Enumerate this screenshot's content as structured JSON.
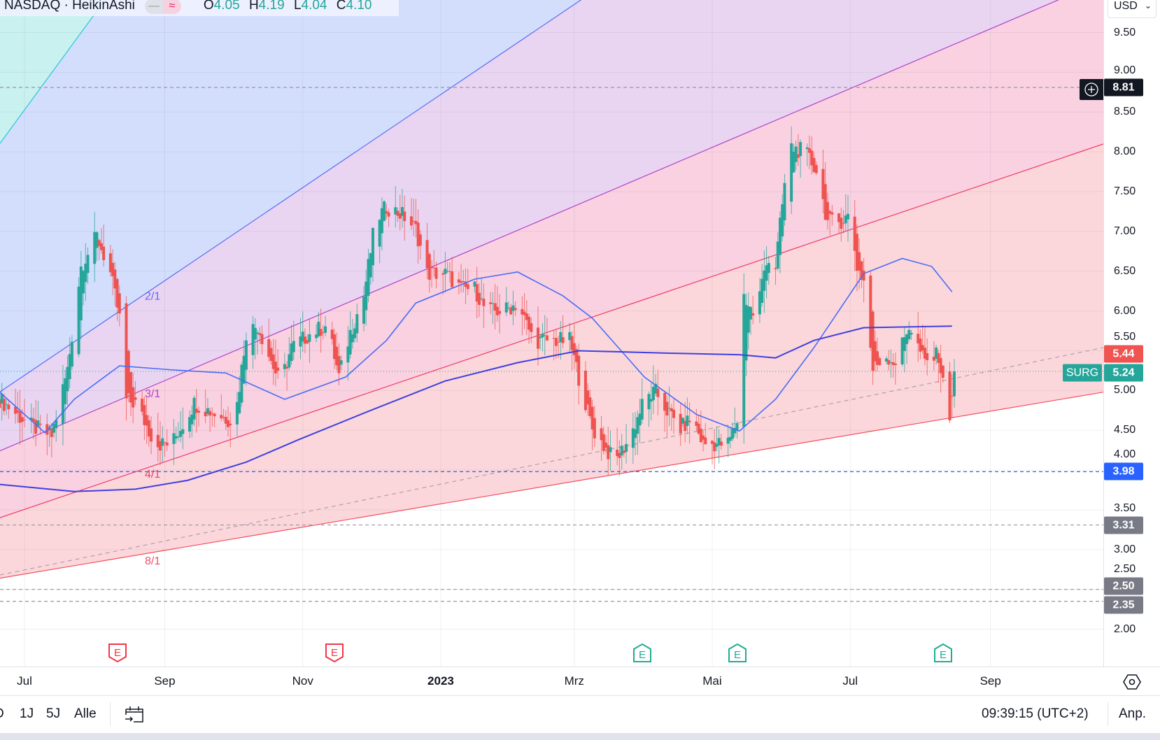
{
  "legend": {
    "symbol": "NASDAQ · HeikinAshi",
    "badge_left": "—",
    "badge_right": "≈",
    "open_label": "O",
    "open": "4.05",
    "high_label": "H",
    "high": "4.19",
    "low_label": "L",
    "low": "4.04",
    "close_label": "C",
    "close": "4.10"
  },
  "currency": {
    "label": "USD",
    "icon": "chevron-down-icon"
  },
  "colors": {
    "up": "#26a69a",
    "down": "#ef5350",
    "ma_fast": "#4a6cf7",
    "ma_slow": "#3f3fe0",
    "blue_line": "#2962ff",
    "grey_label": "#787b86",
    "dark_label": "#131722"
  },
  "bottom_bar": {
    "ranges": [
      "D",
      "1J",
      "5J",
      "Alle"
    ],
    "calendar_icon": "goto-date-icon",
    "clock": "09:39:15 (UTC+2)",
    "adjust": "Anp."
  },
  "chart_data": {
    "type": "candlestick",
    "style": "HeikinAshi",
    "y_ticks": [
      "9.50",
      "9.00",
      "8.50",
      "8.00",
      "7.50",
      "7.00",
      "6.50",
      "6.00",
      "5.50",
      "5.00",
      "4.50",
      "4.00",
      "3.50",
      "3.00",
      "2.50",
      "2.00"
    ],
    "ylim": [
      1.75,
      9.9
    ],
    "x_ticks": [
      {
        "label": "Jul",
        "date": "2022-07-01"
      },
      {
        "label": "Sep",
        "date": "2022-09-01"
      },
      {
        "label": "Nov",
        "date": "2022-11-01"
      },
      {
        "label": "2023",
        "date": "2023-01-01"
      },
      {
        "label": "Mrz",
        "date": "2023-03-01"
      },
      {
        "label": "Mai",
        "date": "2023-05-01"
      },
      {
        "label": "Jul",
        "date": "2023-07-01"
      },
      {
        "label": "Sep",
        "date": "2023-09-01"
      }
    ],
    "grid": true,
    "price_path": [
      [
        "2022-06-20",
        4.89
      ],
      [
        "2022-07-03",
        4.57
      ],
      [
        "2022-07-13",
        4.43
      ],
      [
        "2022-07-20",
        5.26
      ],
      [
        "2022-07-26",
        6.56
      ],
      [
        "2022-08-02",
        6.94
      ],
      [
        "2022-08-08",
        6.47
      ],
      [
        "2022-08-12",
        5.91
      ],
      [
        "2022-08-14",
        4.89
      ],
      [
        "2022-08-19",
        4.84
      ],
      [
        "2022-08-28",
        4.33
      ],
      [
        "2022-09-04",
        4.33
      ],
      [
        "2022-09-14",
        4.84
      ],
      [
        "2022-09-24",
        4.7
      ],
      [
        "2022-10-02",
        4.61
      ],
      [
        "2022-10-07",
        5.73
      ],
      [
        "2022-10-12",
        5.82
      ],
      [
        "2022-10-17",
        5.45
      ],
      [
        "2022-10-22",
        5.08
      ],
      [
        "2022-10-27",
        5.54
      ],
      [
        "2022-11-05",
        5.73
      ],
      [
        "2022-11-12",
        5.82
      ],
      [
        "2022-11-17",
        5.17
      ],
      [
        "2022-11-22",
        5.73
      ],
      [
        "2022-11-28",
        6.19
      ],
      [
        "2022-12-03",
        7.12
      ],
      [
        "2022-12-08",
        7.31
      ],
      [
        "2022-12-15",
        7.21
      ],
      [
        "2022-12-21",
        7.03
      ],
      [
        "2022-12-26",
        6.47
      ],
      [
        "2023-01-03",
        6.47
      ],
      [
        "2023-01-10",
        6.28
      ],
      [
        "2023-01-16",
        6.28
      ],
      [
        "2023-01-21",
        6.0
      ],
      [
        "2023-01-29",
        6.0
      ],
      [
        "2023-02-04",
        6.1
      ],
      [
        "2023-02-11",
        5.63
      ],
      [
        "2023-02-20",
        5.63
      ],
      [
        "2023-02-27",
        5.63
      ],
      [
        "2023-03-03",
        5.17
      ],
      [
        "2023-03-09",
        4.52
      ],
      [
        "2023-03-19",
        4.1
      ],
      [
        "2023-03-26",
        4.43
      ],
      [
        "2023-04-01",
        4.89
      ],
      [
        "2023-04-06",
        4.98
      ],
      [
        "2023-04-11",
        4.75
      ],
      [
        "2023-04-17",
        4.52
      ],
      [
        "2023-04-22",
        4.66
      ],
      [
        "2023-04-27",
        4.33
      ],
      [
        "2023-05-08",
        4.33
      ],
      [
        "2023-05-13",
        4.7
      ],
      [
        "2023-05-15",
        6.19
      ],
      [
        "2023-05-20",
        5.91
      ],
      [
        "2023-05-25",
        6.66
      ],
      [
        "2023-05-29",
        6.56
      ],
      [
        "2023-06-02",
        7.59
      ],
      [
        "2023-06-05",
        8.05
      ],
      [
        "2023-06-11",
        8.0
      ],
      [
        "2023-06-16",
        7.77
      ],
      [
        "2023-06-21",
        7.12
      ],
      [
        "2023-06-26",
        7.12
      ],
      [
        "2023-07-01",
        7.21
      ],
      [
        "2023-07-04",
        6.56
      ],
      [
        "2023-07-07",
        6.38
      ],
      [
        "2023-07-11",
        5.26
      ],
      [
        "2023-07-16",
        5.45
      ],
      [
        "2023-07-21",
        5.35
      ],
      [
        "2023-07-27",
        5.82
      ],
      [
        "2023-08-03",
        5.35
      ],
      [
        "2023-08-09",
        5.45
      ],
      [
        "2023-08-12",
        4.89
      ],
      [
        "2023-08-14",
        4.7
      ],
      [
        "2023-08-16",
        5.24
      ]
    ],
    "moving_averages": [
      {
        "points": [
          [
            "2022-06-20",
            4.98
          ],
          [
            "2022-07-10",
            4.47
          ],
          [
            "2022-07-23",
            4.89
          ],
          [
            "2022-08-12",
            5.31
          ],
          [
            "2022-09-04",
            5.26
          ],
          [
            "2022-09-28",
            5.22
          ],
          [
            "2022-10-24",
            4.89
          ],
          [
            "2022-11-20",
            5.17
          ],
          [
            "2022-12-08",
            5.63
          ],
          [
            "2022-12-21",
            6.1
          ],
          [
            "2023-01-16",
            6.4
          ],
          [
            "2023-02-04",
            6.49
          ],
          [
            "2023-02-24",
            6.19
          ],
          [
            "2023-03-09",
            5.91
          ],
          [
            "2023-04-01",
            5.17
          ],
          [
            "2023-04-24",
            4.7
          ],
          [
            "2023-05-13",
            4.49
          ],
          [
            "2023-05-29",
            4.89
          ],
          [
            "2023-06-15",
            5.54
          ],
          [
            "2023-07-07",
            6.47
          ],
          [
            "2023-07-24",
            6.66
          ],
          [
            "2023-08-06",
            6.56
          ],
          [
            "2023-08-15",
            6.24
          ]
        ]
      },
      {
        "points": [
          [
            "2022-06-20",
            3.82
          ],
          [
            "2022-07-23",
            3.73
          ],
          [
            "2022-08-19",
            3.76
          ],
          [
            "2022-09-11",
            3.87
          ],
          [
            "2022-10-07",
            4.1
          ],
          [
            "2022-10-30",
            4.38
          ],
          [
            "2022-12-01",
            4.75
          ],
          [
            "2023-01-03",
            5.12
          ],
          [
            "2023-02-04",
            5.35
          ],
          [
            "2023-03-03",
            5.5
          ],
          [
            "2023-04-11",
            5.47
          ],
          [
            "2023-05-13",
            5.45
          ],
          [
            "2023-05-29",
            5.41
          ],
          [
            "2023-06-15",
            5.63
          ],
          [
            "2023-07-07",
            5.79
          ],
          [
            "2023-08-15",
            5.81
          ]
        ]
      }
    ],
    "gann_fan": {
      "labels": [
        "2/1",
        "3/1",
        "4/1",
        "8/1"
      ],
      "lines": [
        {
          "from": [
            "2022-06-20",
            8.1
          ],
          "to": [
            "2022-08-02",
            9.77
          ],
          "color": "#26c6da",
          "fill": "#c9f1ef"
        },
        {
          "from": [
            "2022-06-20",
            4.98
          ],
          "to": [
            "2023-03-04",
            9.91
          ],
          "color": "#5b6cf0",
          "fill": "#d3defd",
          "label": "2/1"
        },
        {
          "from": [
            "2022-06-20",
            4.24
          ],
          "to": [
            "2023-10-01",
            9.91
          ],
          "color": "#b044c8",
          "fill": "#e9d5f1",
          "label": "3/1"
        },
        {
          "from": [
            "2022-06-20",
            3.4
          ],
          "to": [
            "2023-10-21",
            8.1
          ],
          "color": "#f23a6a",
          "fill": "#f9d1e0",
          "label": "4/1"
        },
        {
          "from": [
            "2022-06-20",
            2.64
          ],
          "to": [
            "2023-10-21",
            4.98
          ],
          "color": "#f44e5e",
          "fill": "#fbd7db",
          "label": "8/1"
        }
      ],
      "trend": {
        "from": [
          "2022-06-20",
          2.68
        ],
        "to": [
          "2023-10-21",
          5.54
        ],
        "color": "#b0a0a8"
      }
    },
    "horizontal_lines": [
      {
        "price": 8.81,
        "label": "8.81",
        "color": "#131722",
        "line": "#9598a1",
        "style": "dashed",
        "plus_icon": "add-alert-icon"
      },
      {
        "price": 3.98,
        "label": "3.98",
        "color": "#2962ff",
        "line": "#2962ff",
        "style": "dashed"
      },
      {
        "price": 3.31,
        "label": "3.31",
        "color": "#787b86",
        "line": "#9598a1",
        "style": "dashed"
      },
      {
        "price": 2.5,
        "label": "2.50",
        "color": "#787b86",
        "line": "#9598a1",
        "style": "dashed"
      },
      {
        "price": 2.35,
        "label": "2.35",
        "color": "#787b86",
        "line": "#9598a1",
        "style": "dashed"
      }
    ],
    "price_labels": [
      {
        "price": 5.44,
        "label": "5.44",
        "color": "#f05350"
      },
      {
        "price": 5.24,
        "label": "5.24",
        "color": "#26a69a",
        "ticker": "SURG"
      }
    ],
    "current_price": 5.24,
    "earnings": [
      {
        "date": "2022-08-11",
        "label": "E",
        "color": "#f23645"
      },
      {
        "date": "2022-11-15",
        "label": "E",
        "color": "#f23645"
      },
      {
        "date": "2023-03-31",
        "label": "E",
        "color": "#22ab94"
      },
      {
        "date": "2023-05-12",
        "label": "E",
        "color": "#22ab94"
      },
      {
        "date": "2023-08-11",
        "label": "E",
        "color": "#22ab94"
      }
    ]
  }
}
